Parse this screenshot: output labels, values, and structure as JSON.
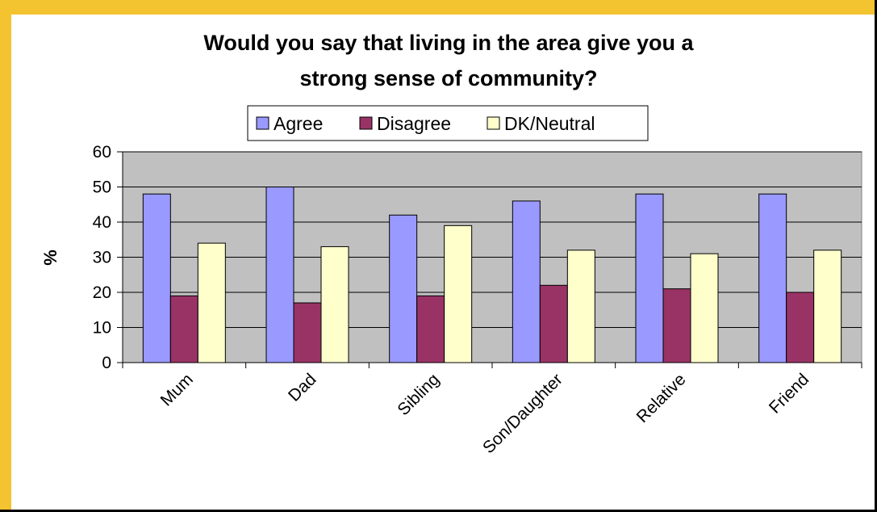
{
  "chart_data": {
    "type": "bar",
    "title": "Would you say that living in the area give you a strong sense of community?",
    "title_lines": [
      "Would you say that living in the area give you a",
      "strong sense of community?"
    ],
    "xlabel": "",
    "ylabel": "%",
    "ylim": [
      0,
      60
    ],
    "yticks": [
      0,
      10,
      20,
      30,
      40,
      50,
      60
    ],
    "grid": true,
    "legend_position": "top",
    "categories": [
      "Mum",
      "Dad",
      "Sibling",
      "Son/Daughter",
      "Relative",
      "Friend"
    ],
    "series": [
      {
        "name": "Agree",
        "color": "#9999ff",
        "values": [
          48,
          50,
          42,
          46,
          48,
          48
        ]
      },
      {
        "name": "Disagree",
        "color": "#993366",
        "values": [
          19,
          17,
          19,
          22,
          21,
          20
        ]
      },
      {
        "name": "DK/Neutral",
        "color": "#ffffcc",
        "values": [
          34,
          33,
          39,
          32,
          31,
          32
        ]
      }
    ],
    "plot_background": "#c0c0c0"
  }
}
